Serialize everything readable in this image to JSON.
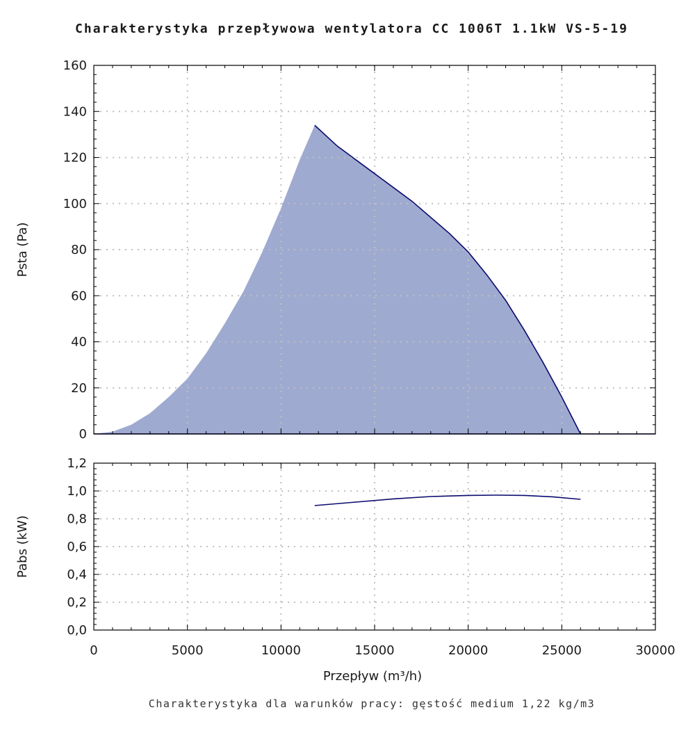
{
  "chart_data": [
    {
      "type": "area",
      "title": "Charakterystyka przepływowa wentylatora CC 1006T 1.1kW VS-5-19",
      "ylabel": "Psta (Pa)",
      "xlabel": "",
      "xlim": [
        0,
        30000
      ],
      "ylim": [
        0,
        160
      ],
      "x_ticks": [
        "0",
        "5000",
        "10000",
        "15000",
        "20000",
        "25000",
        "30000"
      ],
      "y_ticks": [
        "0",
        "20",
        "40",
        "60",
        "80",
        "100",
        "120",
        "140",
        "160"
      ],
      "grid": true,
      "colors": {
        "fill": "#9faad0",
        "line": "#0a0a6e"
      },
      "fill_boundary": {
        "x": [
          0,
          1000,
          2000,
          3000,
          4000,
          5000,
          6000,
          7000,
          8000,
          9000,
          10000,
          11000,
          11800
        ],
        "y": [
          0,
          1,
          4,
          9,
          16,
          24,
          35,
          48,
          62,
          79,
          98,
          119,
          134
        ]
      },
      "series": [
        {
          "x": [
            11800,
            13000,
            14000,
            15000,
            16000,
            17000,
            18000,
            19000,
            20000,
            21000,
            22000,
            23000,
            24000,
            25000,
            26000
          ],
          "y": [
            134,
            125,
            119,
            113,
            107,
            101,
            94,
            87,
            79,
            69,
            58,
            45,
            31,
            16,
            0
          ]
        }
      ]
    },
    {
      "type": "line",
      "ylabel": "Pabs (kW)",
      "xlabel": "Przepływ (m³/h)",
      "xlim": [
        0,
        30000
      ],
      "ylim": [
        0,
        1.2
      ],
      "x_ticks": [
        "0",
        "5000",
        "10000",
        "15000",
        "20000",
        "25000",
        "30000"
      ],
      "y_ticks": [
        "0,0",
        "0,2",
        "0,4",
        "0,6",
        "0,8",
        "1,0",
        "1,2"
      ],
      "grid": true,
      "colors": {
        "line": "#0a0a6e"
      },
      "series": [
        {
          "x": [
            11800,
            14000,
            16000,
            18000,
            20000,
            21500,
            23000,
            24500,
            26000
          ],
          "y": [
            0.895,
            0.92,
            0.943,
            0.96,
            0.968,
            0.97,
            0.968,
            0.958,
            0.94
          ]
        }
      ]
    }
  ],
  "footnote": "Charakterystyka dla warunków pracy: gęstość medium 1,22 kg/m3"
}
